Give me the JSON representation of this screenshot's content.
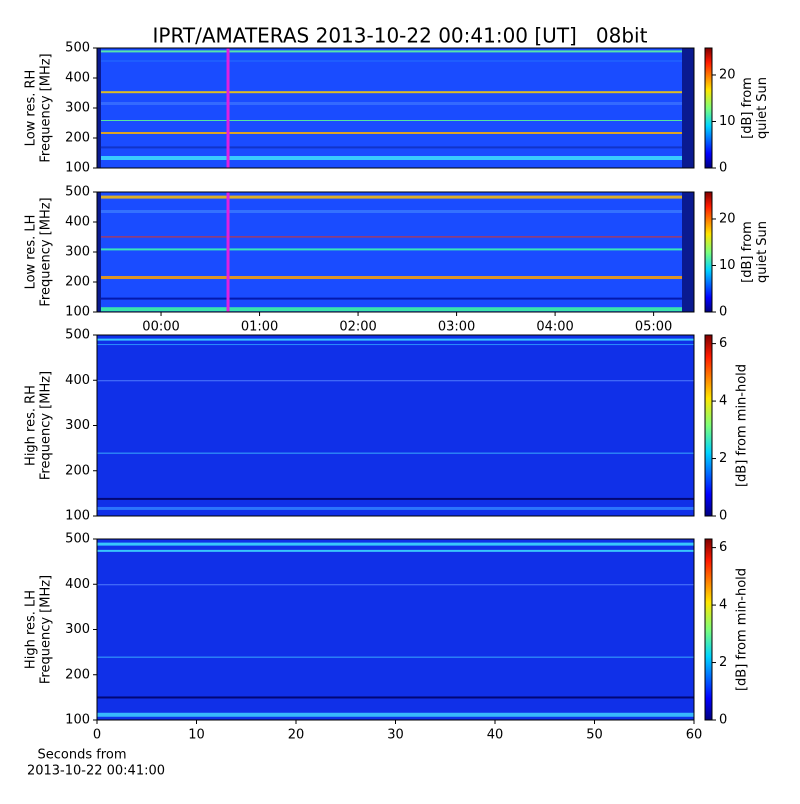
{
  "chart_data": [
    {
      "type": "heatmap",
      "title": "IPRT/AMATERAS 2013-10-22 00:41:00 [UT]   08bit",
      "ylabel": [
        "Low res. RH",
        "Frequency [MHz]"
      ],
      "ylim": [
        100,
        500
      ],
      "yticks": [
        100,
        200,
        300,
        400,
        500
      ],
      "marker_x": 0.68,
      "marker_color": "#e020e0",
      "xlim": [
        -0.65,
        5.41
      ],
      "colorbar_label": [
        "[dB] from",
        "quiet Sun"
      ],
      "clim": [
        0,
        25.8
      ],
      "cticks": [
        0,
        10,
        20
      ]
    },
    {
      "type": "heatmap",
      "ylabel": [
        "Low res. LH",
        "Frequency [MHz]"
      ],
      "ylim": [
        100,
        500
      ],
      "yticks": [
        100,
        200,
        300,
        400,
        500
      ],
      "marker_x": 0.68,
      "marker_color": "#e020e0",
      "xlim": [
        -0.65,
        5.41
      ],
      "xticks": [
        {
          "value": 0,
          "label": "00:00"
        },
        {
          "value": 1,
          "label": "01:00"
        },
        {
          "value": 2,
          "label": "02:00"
        },
        {
          "value": 3,
          "label": "03:00"
        },
        {
          "value": 4,
          "label": "04:00"
        },
        {
          "value": 5,
          "label": "05:00"
        }
      ],
      "colorbar_label": [
        "[dB] from",
        "quiet Sun"
      ],
      "clim": [
        0,
        25.8
      ],
      "cticks": [
        0,
        10,
        20
      ]
    },
    {
      "type": "heatmap",
      "ylabel": [
        "High res. RH",
        "Frequency [MHz]"
      ],
      "ylim": [
        100,
        500
      ],
      "yticks": [
        100,
        200,
        300,
        400,
        500
      ],
      "colorbar_label": [
        "[dB] from min-hold"
      ],
      "clim": [
        0,
        6.3
      ],
      "cticks": [
        0,
        2,
        4,
        6
      ]
    },
    {
      "type": "heatmap",
      "ylabel": [
        "High res. LH",
        "Frequency [MHz]"
      ],
      "ylim": [
        100,
        500
      ],
      "yticks": [
        100,
        200,
        300,
        400,
        500
      ],
      "xlim": [
        0,
        60
      ],
      "xticks": [
        0,
        10,
        20,
        30,
        40,
        50,
        60
      ],
      "xlabel": [
        "Seconds from",
        "2013-10-22 00:41:00"
      ],
      "colorbar_label": [
        "[dB] from min-hold"
      ],
      "clim": [
        0,
        6.3
      ],
      "cticks": [
        0,
        2,
        4,
        6
      ]
    }
  ]
}
